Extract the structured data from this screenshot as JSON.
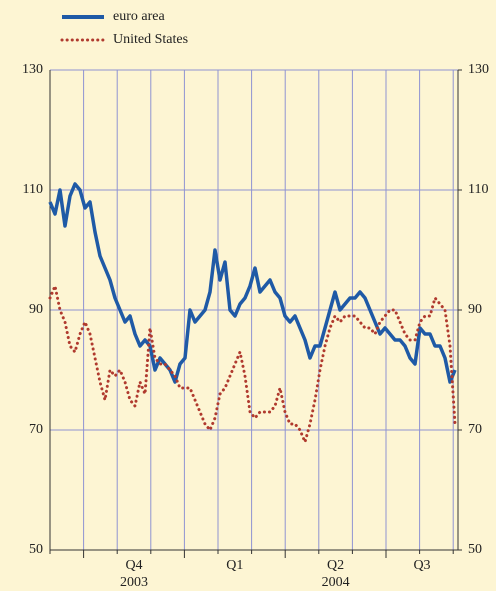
{
  "chart_data": {
    "type": "line",
    "series": [
      {
        "name": "euro area",
        "color": "#1f5aa6",
        "style": "solid",
        "values": [
          108,
          106,
          110,
          104,
          109,
          111,
          110,
          107,
          108,
          103,
          99,
          97,
          95,
          92,
          90,
          88,
          89,
          86,
          84,
          85,
          84,
          80,
          82,
          81,
          80,
          78,
          81,
          82,
          90,
          88,
          89,
          90,
          93,
          100,
          95,
          98,
          90,
          89,
          91,
          92,
          94,
          97,
          93,
          94,
          95,
          93,
          92,
          89,
          88,
          89,
          87,
          85,
          82,
          84,
          84,
          87,
          90,
          93,
          90,
          91,
          92,
          92,
          93,
          92,
          90,
          88,
          86,
          87,
          86,
          85,
          85,
          84,
          82,
          81,
          87,
          86,
          86,
          84,
          84,
          82,
          78,
          80
        ]
      },
      {
        "name": "United States",
        "color": "#b03a2e",
        "style": "dotted",
        "values": [
          92,
          94,
          90,
          88,
          84,
          83,
          86,
          88,
          86,
          82,
          78,
          75,
          80,
          79,
          80,
          78,
          75,
          74,
          78,
          76,
          87,
          82,
          81,
          81,
          80,
          79,
          77,
          77,
          77,
          75,
          73,
          71,
          70,
          72,
          76,
          77,
          79,
          81,
          83,
          79,
          73,
          72,
          73,
          73,
          73,
          74,
          77,
          73,
          71,
          71,
          70,
          68,
          71,
          75,
          80,
          84,
          87,
          89,
          88,
          89,
          89,
          89,
          88,
          87,
          87,
          86,
          88,
          89,
          90,
          90,
          88,
          86,
          85,
          85,
          88,
          89,
          89,
          92,
          91,
          90,
          84,
          71
        ]
      }
    ],
    "ylim": [
      50,
      130
    ],
    "yticks": [
      50,
      70,
      90,
      110,
      130
    ],
    "y2lim": [
      50,
      130
    ],
    "y2ticks": [
      50,
      70,
      90,
      110,
      130
    ],
    "x_labels": [
      {
        "label": "Q4",
        "year": "2003"
      },
      {
        "label": "Q1"
      },
      {
        "label": "Q2",
        "year": "2004"
      },
      {
        "label": "Q3"
      }
    ],
    "grid": true
  }
}
